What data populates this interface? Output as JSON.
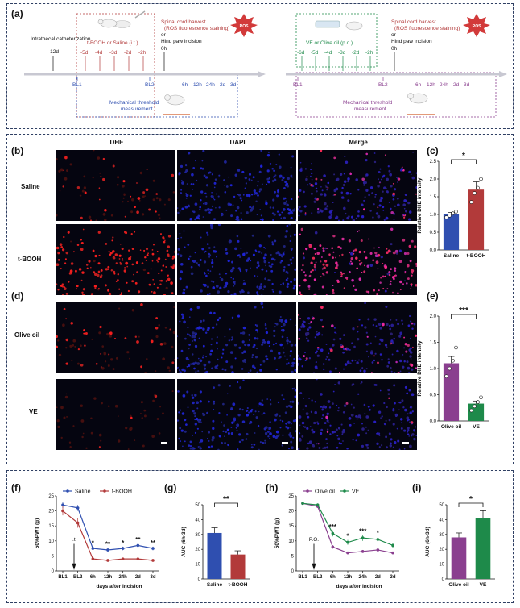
{
  "labels": {
    "a": "(a)",
    "b": "(b)",
    "c": "(c)",
    "d": "(d)",
    "e": "(e)",
    "f": "(f)",
    "g": "(g)",
    "h": "(h)",
    "i": "(i)"
  },
  "timeline_left": {
    "intrathecal": "Intrathecal catheterization",
    "minus12": "-12d",
    "treatment": "t-BOOH or Saline (i.t.)",
    "days": [
      "-5d",
      "-4d",
      "-3d",
      "-2d",
      "-2h"
    ],
    "harvest": "Spinal cord harvest",
    "harvest_sub": "(ROS fluorescence staining)",
    "or": "or",
    "incision": "Hind paw incision",
    "zero": "0h",
    "ros": "ROS",
    "bl1": "BL1",
    "bl2": "BL2",
    "post": [
      "6h",
      "12h",
      "24h",
      "2d",
      "3d"
    ],
    "mech": "Mechanical threshold",
    "mech2": "measurement"
  },
  "timeline_right": {
    "treatment": "VE or Olive oil (p.o.)",
    "days": [
      "-6d",
      "-5d",
      "-4d",
      "-3d",
      "-2d",
      "-2h"
    ],
    "harvest": "Spinal cord harvest",
    "harvest_sub": "(ROS fluorescence staining)",
    "or": "or",
    "incision": "Hind paw incision",
    "zero": "0h",
    "ros": "ROS",
    "bl1": "BL1",
    "bl2": "BL2",
    "post": [
      "6h",
      "12h",
      "24h",
      "2d",
      "3d"
    ],
    "mech": "Mechanical threshold",
    "mech2": "measurement"
  },
  "micro": {
    "columns": [
      "DHE",
      "DAPI",
      "Merge"
    ],
    "rows_b": [
      "Saline",
      "t-BOOH"
    ],
    "rows_d": [
      "Olive oil",
      "VE"
    ]
  },
  "colors": {
    "blue": "#2f4fb0",
    "red": "#b23a3a",
    "purple": "#8a3f8f",
    "green": "#1e8a4a",
    "frame": "#2f3f63"
  },
  "chart_data": [
    {
      "id": "c",
      "type": "bar",
      "categories": [
        "Saline",
        "t-BOOH"
      ],
      "values": [
        1.0,
        1.7
      ],
      "errors": [
        0.06,
        0.22
      ],
      "points": [
        [
          0.92,
          0.97,
          1.03,
          1.08
        ],
        [
          1.35,
          1.6,
          1.75,
          2.0
        ]
      ],
      "ylabel": "Relative DHE intensity",
      "ylim": [
        0,
        2.5
      ],
      "yticks": [
        0.0,
        0.5,
        1.0,
        1.5,
        2.0,
        2.5
      ],
      "significance": "*"
    },
    {
      "id": "e",
      "type": "bar",
      "categories": [
        "Olive oil",
        "VE"
      ],
      "values": [
        1.1,
        0.33
      ],
      "errors": [
        0.13,
        0.05
      ],
      "points": [
        [
          0.85,
          1.0,
          1.15,
          1.4
        ],
        [
          0.2,
          0.28,
          0.36,
          0.45
        ]
      ],
      "ylabel": "Relative DHE intensity",
      "ylim": [
        0,
        2.0
      ],
      "yticks": [
        0.0,
        0.5,
        1.0,
        1.5,
        2.0
      ],
      "significance": "***"
    },
    {
      "id": "f",
      "type": "line",
      "categories": [
        "BL1",
        "BL2",
        "6h",
        "12h",
        "24h",
        "2d",
        "3d"
      ],
      "series": [
        {
          "name": "Saline",
          "values": [
            22,
            21,
            7.5,
            7,
            7.5,
            8.5,
            7.5
          ],
          "errors": [
            1,
            1,
            0.6,
            0.6,
            0.6,
            0.7,
            0.6
          ]
        },
        {
          "name": "t-BOOH",
          "values": [
            20,
            16,
            4,
            3.5,
            4,
            4,
            3.5
          ],
          "errors": [
            1.5,
            1.6,
            0.4,
            0.4,
            0.4,
            0.4,
            0.4
          ]
        }
      ],
      "sig": [
        "",
        "",
        "*",
        "**",
        "*",
        "**",
        "**"
      ],
      "ylabel": "50%PWT (g)",
      "xlabel": "days after incision",
      "ylim": [
        0,
        25
      ],
      "yticks": [
        0,
        5,
        10,
        15,
        20,
        25
      ],
      "annotation": "i.t."
    },
    {
      "id": "g",
      "type": "bar",
      "categories": [
        "Saline",
        "t-BOOH"
      ],
      "values": [
        31,
        16.5
      ],
      "errors": [
        3.5,
        2.5
      ],
      "ylabel": "AUC (6h-3d)",
      "ylim": [
        0,
        50
      ],
      "yticks": [
        0,
        10,
        20,
        30,
        40,
        50
      ],
      "significance": "**"
    },
    {
      "id": "h",
      "type": "line",
      "categories": [
        "BL1",
        "BL2",
        "6h",
        "12h",
        "24h",
        "2d",
        "3d"
      ],
      "series": [
        {
          "name": "Olive oil",
          "values": [
            22.5,
            21.5,
            8,
            6,
            6.5,
            7,
            6
          ],
          "errors": [
            0.4,
            0.5,
            0.6,
            0.5,
            0.5,
            0.5,
            0.5
          ]
        },
        {
          "name": "VE",
          "values": [
            22.5,
            22,
            12.5,
            9.5,
            11,
            10.5,
            8.5
          ],
          "errors": [
            0.4,
            0.5,
            1,
            0.8,
            1,
            0.9,
            0.7
          ]
        }
      ],
      "sig": [
        "",
        "",
        "***",
        "*",
        "***",
        "*",
        ""
      ],
      "ylabel": "50%PWT (g)",
      "xlabel": "days after incision",
      "ylim": [
        0,
        25
      ],
      "yticks": [
        0,
        5,
        10,
        15,
        20,
        25
      ],
      "annotation": "P.O."
    },
    {
      "id": "i",
      "type": "bar",
      "categories": [
        "Olive oil",
        "VE"
      ],
      "values": [
        28,
        41
      ],
      "errors": [
        3,
        5
      ],
      "ylabel": "AUC (6h-3d)",
      "ylim": [
        0,
        50
      ],
      "yticks": [
        0,
        10,
        20,
        30,
        40,
        50
      ],
      "significance": "*"
    }
  ]
}
